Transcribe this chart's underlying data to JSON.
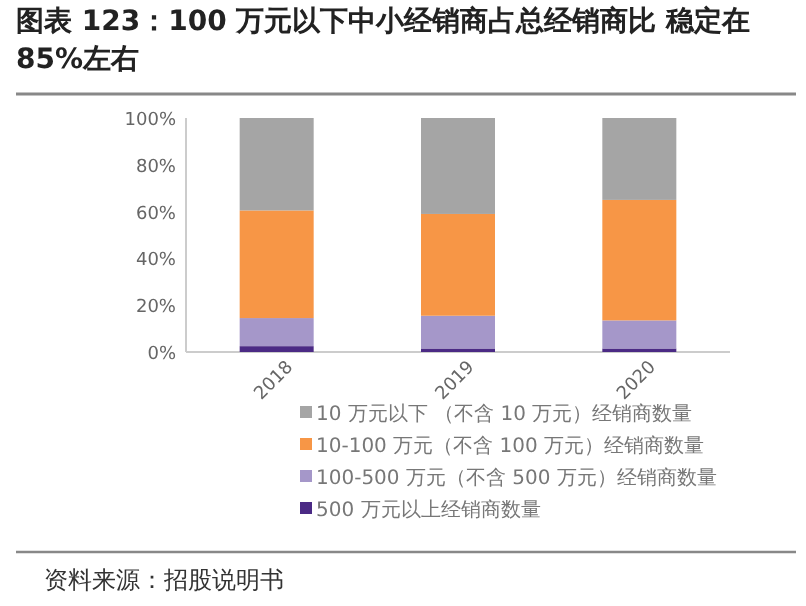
{
  "chart_data": {
    "type": "bar",
    "stacked": true,
    "title": "图表 123：100 万元以下中小经销商占总经销商比 稳定在 85%左右",
    "categories": [
      "2018",
      "2019",
      "2020"
    ],
    "series": [
      {
        "name": "500 万元以上经销商数量",
        "color": "#4b2a85",
        "values": [
          2.5,
          1.5,
          1.5
        ]
      },
      {
        "name": "100-500 万元（不含 500 万元）经销商数量",
        "color": "#a597c9",
        "values": [
          12,
          14,
          12
        ]
      },
      {
        "name": "10-100 万元（不含 100 万元）经销商数量",
        "color": "#f79646",
        "values": [
          46,
          43.5,
          51.5
        ]
      },
      {
        "name": "10 万元以下 （不含 10 万元）经销商数量",
        "color": "#a5a5a5",
        "values": [
          39.5,
          41,
          35
        ]
      }
    ],
    "ylim": [
      0,
      100
    ],
    "yticks": [
      {
        "value": 0,
        "label": "0%"
      },
      {
        "value": 20,
        "label": "20%"
      },
      {
        "value": 40,
        "label": "40%"
      },
      {
        "value": 60,
        "label": "60%"
      },
      {
        "value": 80,
        "label": "80%"
      },
      {
        "value": 100,
        "label": "100%"
      }
    ],
    "legend": "bottom",
    "grid": false,
    "annotations": [
      "资料来源：招股说明书"
    ]
  }
}
